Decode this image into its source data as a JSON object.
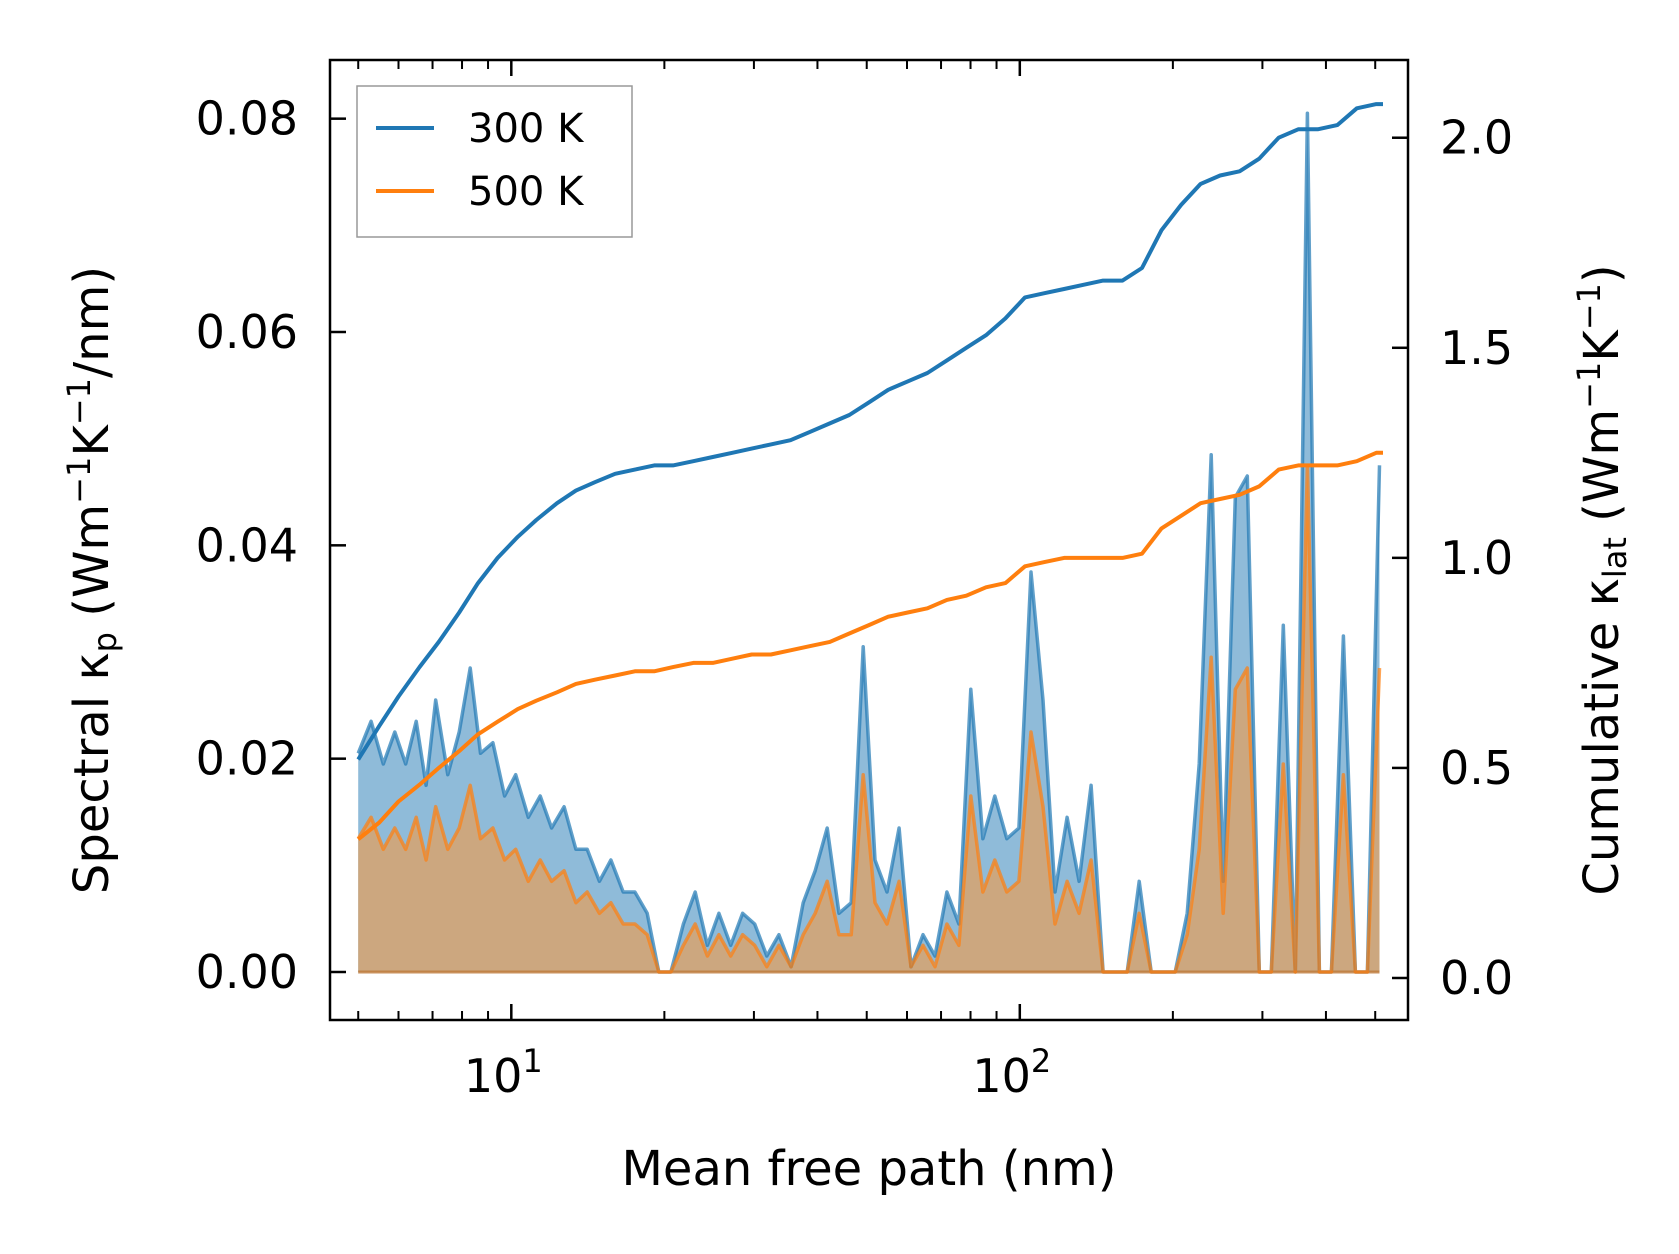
{
  "chart_data": {
    "type": "line",
    "xscale": "log",
    "xlabel": "Mean free path (nm)",
    "ylabel_left": {
      "text": "Spectral κ",
      "sub": "p",
      "units": " (Wm",
      "sup1": "−1",
      "mid": "K",
      "sup2": "−1",
      "tail": "/nm)"
    },
    "ylabel_right": {
      "text": "Cumulative κ",
      "sub": "lat",
      "units": " (Wm",
      "sup1": "−1",
      "mid": "K",
      "sup2": "−1",
      "tail": ")"
    },
    "xlim": [
      4.4,
      580
    ],
    "ylim_left": [
      -0.0045,
      0.0855
    ],
    "ylim_right": [
      -0.1,
      2.185
    ],
    "x_ticks": [
      {
        "base": "10",
        "exp": "1",
        "value": 10
      },
      {
        "base": "10",
        "exp": "2",
        "value": 100
      }
    ],
    "y_ticks_left": [
      {
        "label": "0.00",
        "value": 0.0
      },
      {
        "label": "0.02",
        "value": 0.02
      },
      {
        "label": "0.04",
        "value": 0.04
      },
      {
        "label": "0.06",
        "value": 0.06
      },
      {
        "label": "0.08",
        "value": 0.08
      }
    ],
    "y_ticks_right": [
      {
        "label": "0.0",
        "value": 0.0
      },
      {
        "label": "0.5",
        "value": 0.5
      },
      {
        "label": "1.0",
        "value": 1.0
      },
      {
        "label": "1.5",
        "value": 1.5
      },
      {
        "label": "2.0",
        "value": 2.0
      }
    ],
    "legend": {
      "position": "top-left",
      "entries": [
        {
          "label": "300 K",
          "color": "#1f77b4"
        },
        {
          "label": "500 K",
          "color": "#ff7f0e"
        }
      ]
    },
    "colors": {
      "blue": "#1f77b4",
      "orange": "#ff7f0e",
      "blue_fill": "#1f77b4",
      "orange_fill": "#e0a060"
    },
    "spectral_300K": {
      "x": [
        5.0,
        5.3,
        5.6,
        5.9,
        6.2,
        6.5,
        6.8,
        7.1,
        7.5,
        7.9,
        8.3,
        8.7,
        9.2,
        9.7,
        10.2,
        10.8,
        11.4,
        12.0,
        12.7,
        13.4,
        14.1,
        14.9,
        15.7,
        16.6,
        17.5,
        18.5,
        19.5,
        20.6,
        21.8,
        23.0,
        24.3,
        25.6,
        27.0,
        28.5,
        30.1,
        31.8,
        33.6,
        35.5,
        37.5,
        39.6,
        41.8,
        44.1,
        46.6,
        49.2,
        51.9,
        54.8,
        57.9,
        61.1,
        64.5,
        68.1,
        71.9,
        75.9,
        80.1,
        84.6,
        89.3,
        94.3,
        99.6,
        105.2,
        111.1,
        117.3,
        123.9,
        130.8,
        138.1,
        145.8,
        154.0,
        162.6,
        171.7,
        181.3,
        191.4,
        202.1,
        213.4,
        225.3,
        237.9,
        251.2,
        265.3,
        280.1,
        295.8,
        312.3,
        329.8,
        348.2,
        367.7,
        388.3,
        410.0,
        432.9,
        457.1,
        482.7,
        509.7
      ],
      "y": [
        0.0205,
        0.0235,
        0.0195,
        0.0225,
        0.0195,
        0.0235,
        0.0175,
        0.0255,
        0.0185,
        0.0225,
        0.0285,
        0.0205,
        0.0215,
        0.0165,
        0.0185,
        0.0145,
        0.0165,
        0.0135,
        0.0155,
        0.0115,
        0.0115,
        0.0085,
        0.0105,
        0.0075,
        0.0075,
        0.0055,
        0.0,
        0.0,
        0.0045,
        0.0075,
        0.0025,
        0.0055,
        0.0025,
        0.0055,
        0.0045,
        0.0015,
        0.0035,
        0.0005,
        0.0065,
        0.0095,
        0.0135,
        0.0055,
        0.0065,
        0.0305,
        0.0105,
        0.0075,
        0.0135,
        0.0005,
        0.0035,
        0.0015,
        0.0075,
        0.0045,
        0.0265,
        0.0125,
        0.0165,
        0.0125,
        0.0135,
        0.0375,
        0.0255,
        0.0075,
        0.0145,
        0.0085,
        0.0175,
        0.0,
        0.0,
        0.0,
        0.0085,
        0.0,
        0.0,
        0.0,
        0.0055,
        0.0195,
        0.0485,
        0.0085,
        0.0445,
        0.0465,
        0.0,
        0.0,
        0.0325,
        0.0,
        0.0805,
        0.0,
        0.0,
        0.0315,
        0.0,
        0.0,
        0.0475
      ]
    },
    "spectral_500K": {
      "x": [
        5.0,
        5.3,
        5.6,
        5.9,
        6.2,
        6.5,
        6.8,
        7.1,
        7.5,
        7.9,
        8.3,
        8.7,
        9.2,
        9.7,
        10.2,
        10.8,
        11.4,
        12.0,
        12.7,
        13.4,
        14.1,
        14.9,
        15.7,
        16.6,
        17.5,
        18.5,
        19.5,
        20.6,
        21.8,
        23.0,
        24.3,
        25.6,
        27.0,
        28.5,
        30.1,
        31.8,
        33.6,
        35.5,
        37.5,
        39.6,
        41.8,
        44.1,
        46.6,
        49.2,
        51.9,
        54.8,
        57.9,
        61.1,
        64.5,
        68.1,
        71.9,
        75.9,
        80.1,
        84.6,
        89.3,
        94.3,
        99.6,
        105.2,
        111.1,
        117.3,
        123.9,
        130.8,
        138.1,
        145.8,
        154.0,
        162.6,
        171.7,
        181.3,
        191.4,
        202.1,
        213.4,
        225.3,
        237.9,
        251.2,
        265.3,
        280.1,
        295.8,
        312.3,
        329.8,
        348.2,
        367.7,
        388.3,
        410.0,
        432.9,
        457.1,
        482.7,
        509.7
      ],
      "y": [
        0.0125,
        0.0145,
        0.0115,
        0.0135,
        0.0115,
        0.0145,
        0.0105,
        0.0155,
        0.0115,
        0.0135,
        0.0175,
        0.0125,
        0.0135,
        0.0105,
        0.0115,
        0.0085,
        0.0105,
        0.0085,
        0.0095,
        0.0065,
        0.0075,
        0.0055,
        0.0065,
        0.0045,
        0.0045,
        0.0035,
        0.0,
        0.0,
        0.0025,
        0.0045,
        0.0015,
        0.0035,
        0.0015,
        0.0035,
        0.0025,
        0.0005,
        0.0025,
        0.0005,
        0.0035,
        0.0055,
        0.0085,
        0.0035,
        0.0035,
        0.0185,
        0.0065,
        0.0045,
        0.0085,
        0.0005,
        0.0025,
        0.0005,
        0.0045,
        0.0025,
        0.0165,
        0.0075,
        0.0105,
        0.0075,
        0.0085,
        0.0225,
        0.0155,
        0.0045,
        0.0085,
        0.0055,
        0.0105,
        0.0,
        0.0,
        0.0,
        0.0055,
        0.0,
        0.0,
        0.0,
        0.0035,
        0.0115,
        0.0295,
        0.0055,
        0.0265,
        0.0285,
        0.0,
        0.0,
        0.0195,
        0.0,
        0.0475,
        0.0,
        0.0,
        0.0185,
        0.0,
        0.0,
        0.0285
      ]
    },
    "cumulative_300K": {
      "x": [
        5.0,
        5.5,
        6.0,
        6.6,
        7.2,
        7.9,
        8.6,
        9.4,
        10.3,
        11.2,
        12.3,
        13.4,
        14.6,
        16.0,
        17.5,
        19.1,
        20.8,
        22.8,
        24.9,
        27.2,
        29.7,
        32.4,
        35.4,
        38.7,
        42.3,
        46.2,
        50.5,
        55.1,
        60.2,
        65.8,
        71.9,
        78.5,
        85.8,
        93.7,
        102.4,
        111.8,
        122.2,
        133.4,
        145.8,
        159.2,
        173.9,
        190.0,
        207.6,
        226.8,
        247.7,
        270.6,
        295.6,
        323.0,
        352.8,
        385.4,
        421.1,
        460.0,
        502.5,
        518.0
      ],
      "y": [
        0.52,
        0.6,
        0.67,
        0.74,
        0.8,
        0.87,
        0.94,
        1.0,
        1.05,
        1.09,
        1.13,
        1.16,
        1.18,
        1.2,
        1.21,
        1.22,
        1.22,
        1.23,
        1.24,
        1.25,
        1.26,
        1.27,
        1.28,
        1.3,
        1.32,
        1.34,
        1.37,
        1.4,
        1.42,
        1.44,
        1.47,
        1.5,
        1.53,
        1.57,
        1.62,
        1.63,
        1.64,
        1.65,
        1.66,
        1.66,
        1.69,
        1.78,
        1.84,
        1.89,
        1.91,
        1.92,
        1.95,
        2.0,
        2.02,
        2.02,
        2.03,
        2.07,
        2.08,
        2.08
      ]
    },
    "cumulative_500K": {
      "x": [
        5.0,
        5.5,
        6.0,
        6.6,
        7.2,
        7.9,
        8.6,
        9.4,
        10.3,
        11.2,
        12.3,
        13.4,
        14.6,
        16.0,
        17.5,
        19.1,
        20.8,
        22.8,
        24.9,
        27.2,
        29.7,
        32.4,
        35.4,
        38.7,
        42.3,
        46.2,
        50.5,
        55.1,
        60.2,
        65.8,
        71.9,
        78.5,
        85.8,
        93.7,
        102.4,
        111.8,
        122.2,
        133.4,
        145.8,
        159.2,
        173.9,
        190.0,
        207.6,
        226.8,
        247.7,
        270.6,
        295.6,
        323.0,
        352.8,
        385.4,
        421.1,
        460.0,
        502.5,
        518.0
      ],
      "y": [
        0.33,
        0.37,
        0.42,
        0.46,
        0.5,
        0.54,
        0.58,
        0.61,
        0.64,
        0.66,
        0.68,
        0.7,
        0.71,
        0.72,
        0.73,
        0.73,
        0.74,
        0.75,
        0.75,
        0.76,
        0.77,
        0.77,
        0.78,
        0.79,
        0.8,
        0.82,
        0.84,
        0.86,
        0.87,
        0.88,
        0.9,
        0.91,
        0.93,
        0.94,
        0.98,
        0.99,
        1.0,
        1.0,
        1.0,
        1.0,
        1.01,
        1.07,
        1.1,
        1.13,
        1.14,
        1.15,
        1.17,
        1.21,
        1.22,
        1.22,
        1.22,
        1.23,
        1.25,
        1.25
      ]
    }
  }
}
